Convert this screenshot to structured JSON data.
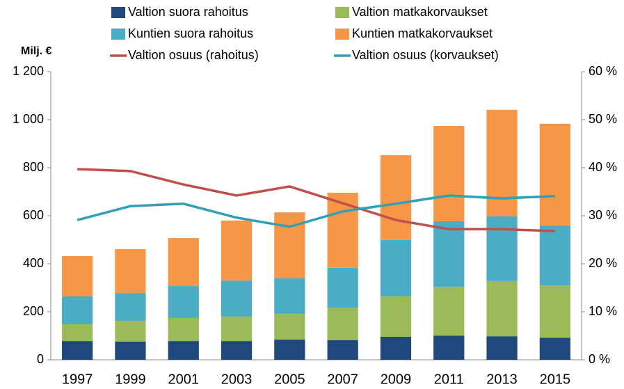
{
  "chart_data": {
    "type": "stacked_bar_line",
    "y_label": "Milj. €",
    "categories": [
      "1997",
      "1999",
      "2001",
      "2003",
      "2005",
      "2007",
      "2009",
      "2011",
      "2013",
      "2015"
    ],
    "series": [
      {
        "name": "Valtion suora rahoitus",
        "color": "#1f497d",
        "values": [
          78,
          76,
          78,
          78,
          84,
          82,
          96,
          100,
          98,
          92
        ]
      },
      {
        "name": "Valtion matkakorvaukset",
        "color": "#9bbb59",
        "values": [
          70,
          86,
          96,
          102,
          107,
          135,
          168,
          204,
          230,
          218
        ]
      },
      {
        "name": "Kuntien suora rahoitus",
        "color": "#4bacc6",
        "values": [
          116,
          116,
          133,
          150,
          148,
          166,
          235,
          273,
          269,
          249
        ]
      },
      {
        "name": "Kuntien matkakorvaukset",
        "color": "#f79646",
        "values": [
          168,
          183,
          200,
          250,
          275,
          313,
          353,
          397,
          444,
          424
        ]
      },
      {
        "name": "Valtion osuus (rahoitus)",
        "color": "#c0504d",
        "axis": "y2",
        "values": [
          39.7,
          39.3,
          36.5,
          34.2,
          36.1,
          32.6,
          29.1,
          27.2,
          27.2,
          26.8
        ]
      },
      {
        "name": "Valtion osuus (korvaukset)",
        "color": "#31a0b6",
        "axis": "y2",
        "values": [
          29.1,
          32.0,
          32.5,
          29.6,
          27.7,
          30.9,
          32.5,
          34.2,
          33.6,
          34.1
        ]
      }
    ],
    "ylim": [
      0,
      1200
    ],
    "yticks": [
      0,
      200,
      400,
      600,
      800,
      {
        "value": 1000,
        "label": "1 000"
      },
      {
        "value": 1200,
        "label": "1 200"
      }
    ],
    "y2lim": [
      0,
      60
    ],
    "y2ticks": [
      {
        "value": 0,
        "label": "0 %"
      },
      {
        "value": 10,
        "label": "10 %"
      },
      {
        "value": 20,
        "label": "20 %"
      },
      {
        "value": 30,
        "label": "30 %"
      },
      {
        "value": 40,
        "label": "40 %"
      },
      {
        "value": 50,
        "label": "50 %"
      },
      {
        "value": 60,
        "label": "60 %"
      }
    ],
    "grid": false
  }
}
